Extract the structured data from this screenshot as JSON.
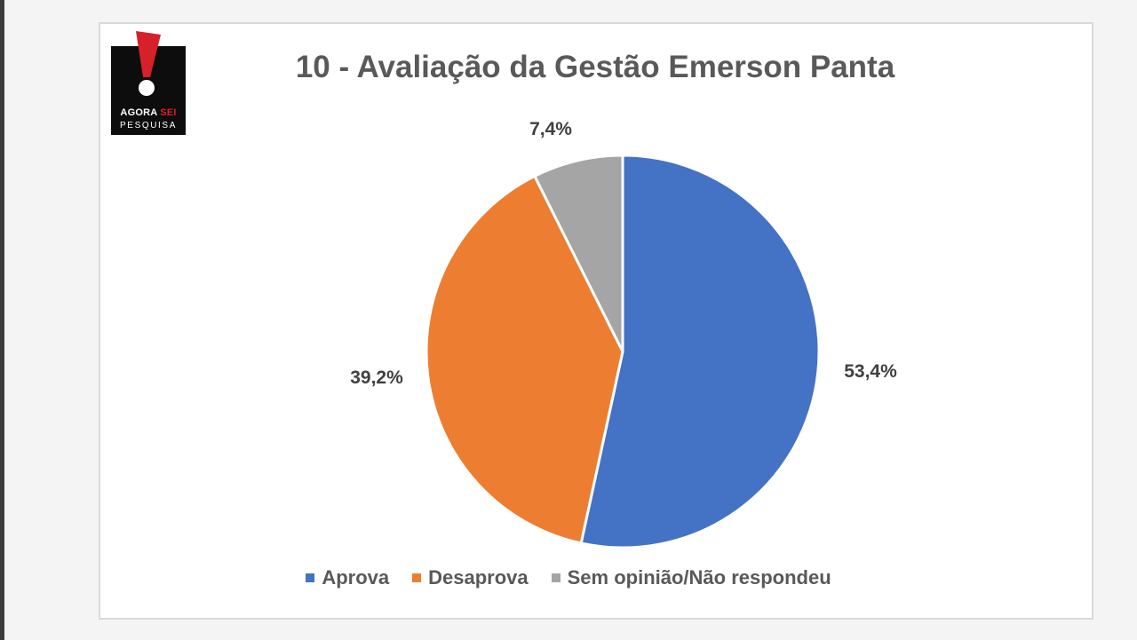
{
  "logo": {
    "line1_a": "AGORA ",
    "line1_b": "SEI",
    "line2": "PESQUISA"
  },
  "chart_data": {
    "type": "pie",
    "title": "10 - Avaliação da Gestão Emerson Panta",
    "categories": [
      "Aprova",
      "Desaprova",
      "Sem opinião/Não respondeu"
    ],
    "values": [
      53.4,
      39.2,
      7.4
    ],
    "labels": [
      "53,4%",
      "39,2%",
      "7,4%"
    ],
    "colors": [
      "#4472c4",
      "#ed7d31",
      "#a5a5a5"
    ],
    "legend_position": "bottom"
  }
}
